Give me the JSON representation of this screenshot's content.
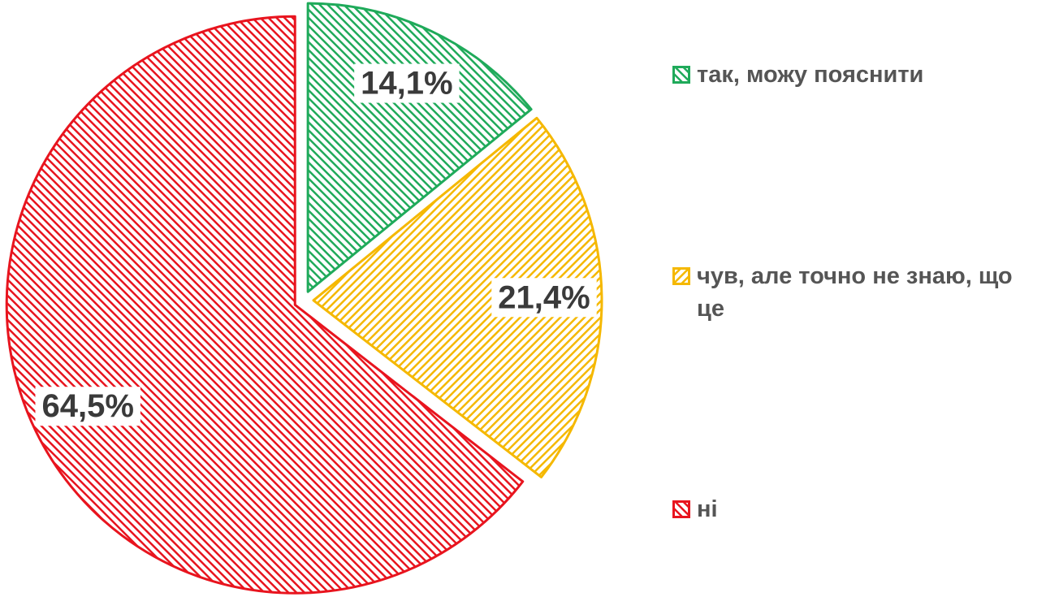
{
  "chart_data": {
    "type": "pie",
    "categories": [
      "так, можу пояснити",
      "чув, але точно не знаю, що це",
      "ні"
    ],
    "values": [
      14.1,
      21.4,
      64.5
    ],
    "value_labels": [
      "14,1%",
      "21,4%",
      "64,5%"
    ],
    "colors": [
      "#1faa5a",
      "#f5b800",
      "#e8141e"
    ],
    "hatch": [
      "\\",
      "/",
      "\\"
    ],
    "legend": "right"
  }
}
